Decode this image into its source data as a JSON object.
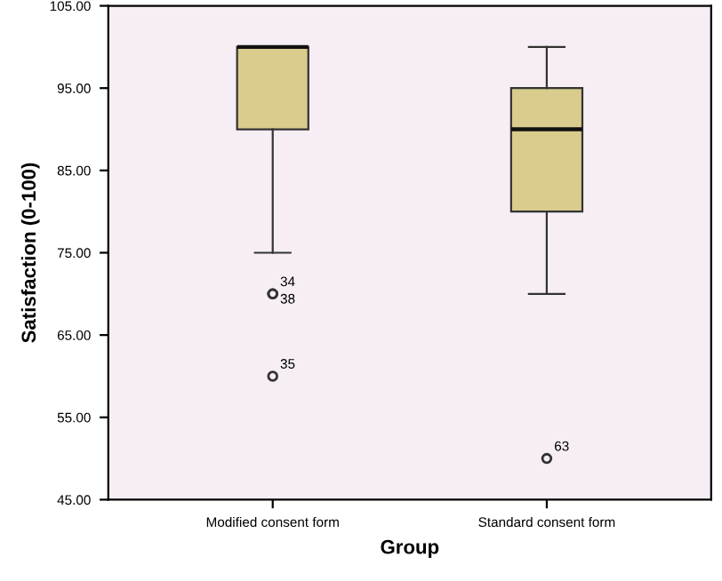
{
  "chart_data": {
    "type": "box",
    "xlabel": "Group",
    "ylabel": "Satisfaction (0-100)",
    "categories": [
      "Modified consent form",
      "Standard consent form"
    ],
    "series": [
      {
        "color": "#d9cc8c",
        "boxes": [
          {
            "low": 75,
            "q1": 90,
            "median": 100,
            "q3": 100,
            "high": 100,
            "outliers": [
              70,
              70,
              60
            ]
          },
          {
            "low": 70,
            "q1": 80,
            "median": 90,
            "q3": 95,
            "high": 100,
            "outliers": [
              50
            ]
          }
        ]
      }
    ],
    "ylim": [
      45,
      105
    ],
    "yticks": [
      {
        "value": 45,
        "label": "45.00"
      },
      {
        "value": 55,
        "label": "55.00"
      },
      {
        "value": 65,
        "label": "65.00"
      },
      {
        "value": 75,
        "label": "75.00"
      },
      {
        "value": 85,
        "label": "85.00"
      },
      {
        "value": 95,
        "label": "95.00"
      },
      {
        "value": 105,
        "label": "105.00"
      }
    ],
    "annotations": [
      "34",
      "38",
      "35",
      "63"
    ]
  }
}
